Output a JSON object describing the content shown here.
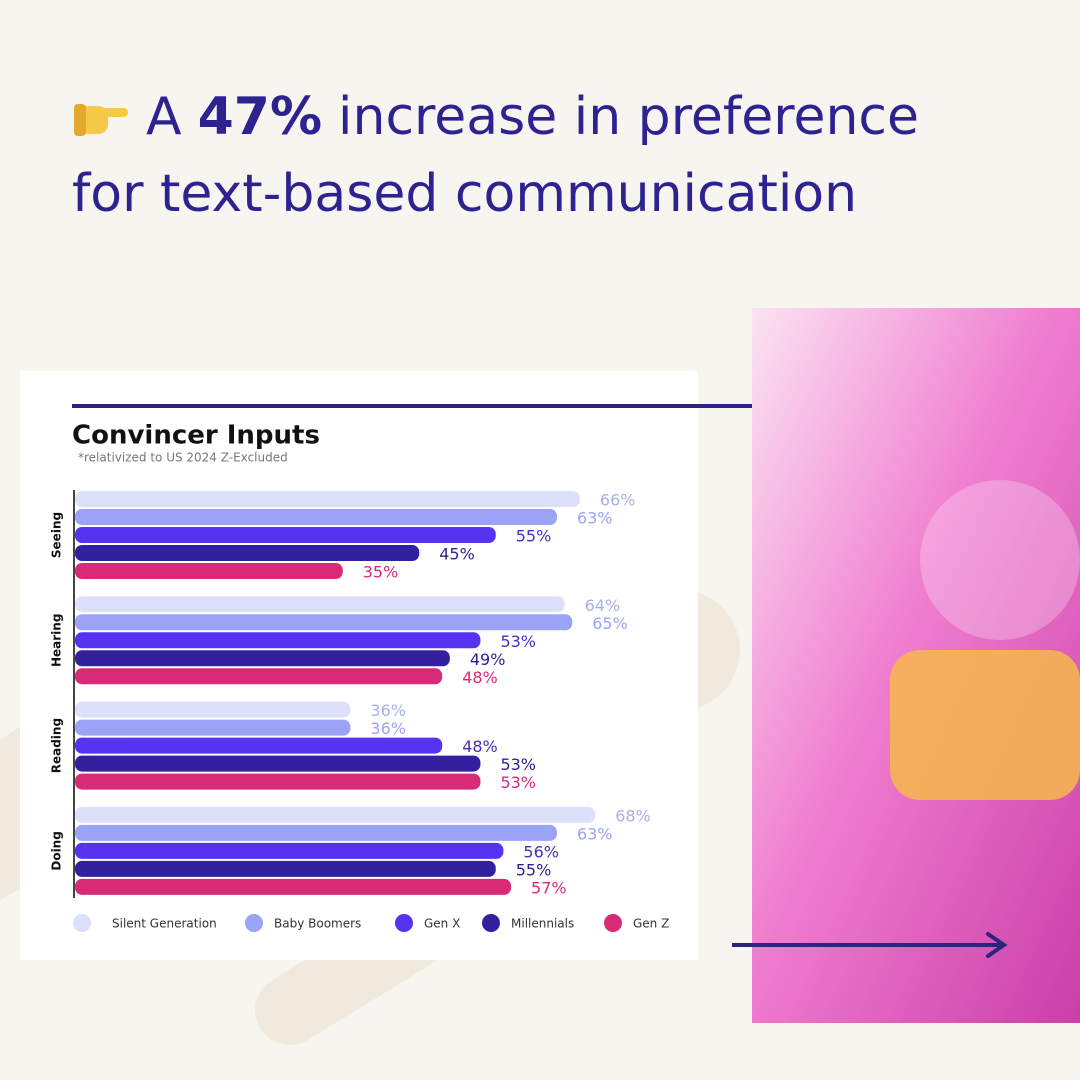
{
  "headline": {
    "prefix": "A",
    "emphasis": "47%",
    "rest": "increase in preference",
    "line2": "for text-based communication"
  },
  "chart_data": {
    "type": "bar",
    "orientation": "horizontal",
    "title": "Convincer Inputs",
    "subtitle": "*relativized to US 2024 Z-Excluded",
    "categories": [
      "Seeing",
      "Hearing",
      "Reading",
      "Doing"
    ],
    "series": [
      {
        "name": "Silent Generation",
        "color": "#dde0fa",
        "label_color": "#a9afe9",
        "values": [
          66,
          64,
          36,
          68
        ],
        "value_labels": [
          "66%",
          "64%",
          "36%",
          "68%"
        ]
      },
      {
        "name": "Baby Boomers",
        "color": "#9aa3f5",
        "label_color": "#9aa3f5",
        "values": [
          63,
          65,
          36,
          63
        ],
        "value_labels": [
          "63%",
          "65%",
          "36%",
          "63%"
        ]
      },
      {
        "name": "Gen X",
        "color": "#5533f0",
        "label_color": "#4a2ec0",
        "values": [
          55,
          53,
          48,
          56
        ],
        "value_labels": [
          "55%",
          "53%",
          "48%",
          "56%"
        ]
      },
      {
        "name": "Millennials",
        "color": "#33209e",
        "label_color": "#2d1f8f",
        "values": [
          45,
          49,
          53,
          55
        ],
        "value_labels": [
          "45%",
          "49%",
          "53%",
          "55%"
        ]
      },
      {
        "name": "Gen Z",
        "color": "#d92a78",
        "label_color": "#d92a78",
        "values": [
          35,
          48,
          53,
          57
        ],
        "value_labels": [
          "35%",
          "48%",
          "53%",
          "57%"
        ]
      }
    ]
  }
}
